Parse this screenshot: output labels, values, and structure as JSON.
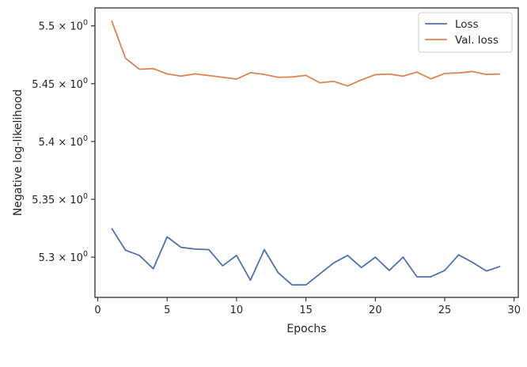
{
  "chart_data": {
    "type": "line",
    "xlabel": "Epochs",
    "ylabel": "Negative log-likelihood",
    "xlim": [
      -0.2,
      30.3
    ],
    "ylim": [
      5.2652,
      5.5155
    ],
    "xticks": [
      0,
      5,
      10,
      15,
      20,
      25,
      30
    ],
    "yticks": [
      {
        "value": 5.3,
        "mantissa": "5.3",
        "exp": "0"
      },
      {
        "value": 5.35,
        "mantissa": "5.35",
        "exp": "0"
      },
      {
        "value": 5.4,
        "mantissa": "5.4",
        "exp": "0"
      },
      {
        "value": 5.45,
        "mantissa": "5.45",
        "exp": "0"
      },
      {
        "value": 5.5,
        "mantissa": "5.5",
        "exp": "0"
      }
    ],
    "legend_position": "top-right",
    "x": [
      1,
      2,
      3,
      4,
      5,
      6,
      7,
      8,
      9,
      10,
      11,
      12,
      13,
      14,
      15,
      16,
      17,
      18,
      19,
      20,
      21,
      22,
      23,
      24,
      25,
      26,
      27,
      28,
      29
    ],
    "series": [
      {
        "name": "Loss",
        "color": "#4c72b0",
        "values": [
          5.325,
          5.306,
          5.3015,
          5.29,
          5.3175,
          5.3085,
          5.307,
          5.3065,
          5.2925,
          5.3015,
          5.28,
          5.3065,
          5.2865,
          5.276,
          5.276,
          5.2855,
          5.295,
          5.3015,
          5.291,
          5.3,
          5.2885,
          5.3,
          5.283,
          5.283,
          5.2885,
          5.302,
          5.2955,
          5.288,
          5.292
        ]
      },
      {
        "name": "Val. loss",
        "color": "#dd8452",
        "values": [
          5.5045,
          5.472,
          5.4625,
          5.463,
          5.4585,
          5.4565,
          5.4585,
          5.457,
          5.4555,
          5.454,
          5.4595,
          5.458,
          5.4555,
          5.4558,
          5.4572,
          5.4508,
          5.452,
          5.448,
          5.4533,
          5.4578,
          5.4583,
          5.4565,
          5.46,
          5.4542,
          5.4588,
          5.4593,
          5.4605,
          5.458,
          5.4583
        ]
      }
    ]
  }
}
